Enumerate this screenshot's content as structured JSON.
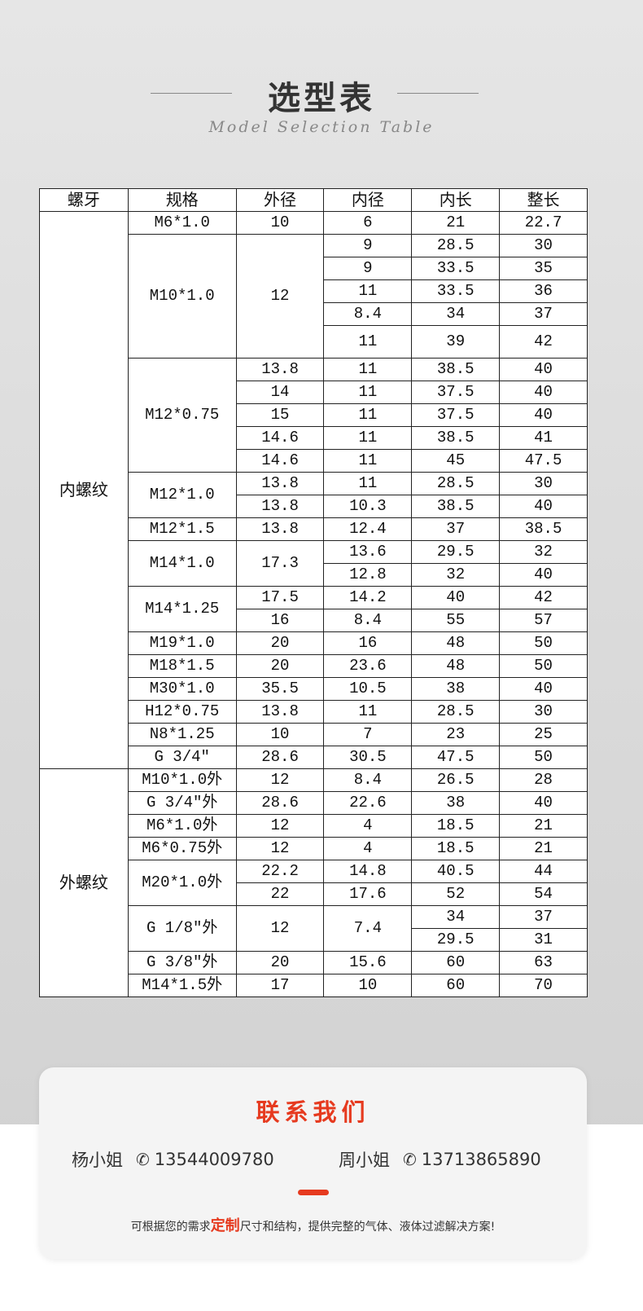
{
  "header": {
    "title": "选型表",
    "subtitle": "Model Selection Table"
  },
  "table": {
    "columns": [
      "螺牙",
      "规格",
      "外径",
      "内径",
      "内长",
      "整长"
    ],
    "rows": [
      [
        {
          "t": "内螺纹",
          "rs": 24
        },
        {
          "t": "M6*1.0"
        },
        {
          "t": "10"
        },
        {
          "t": "6"
        },
        {
          "t": "21"
        },
        {
          "t": "22.7"
        }
      ],
      [
        {
          "t": "M10*1.0",
          "rs": 5
        },
        {
          "t": "12",
          "rs": 5
        },
        {
          "t": "9"
        },
        {
          "t": "28.5"
        },
        {
          "t": "30"
        }
      ],
      [
        {
          "t": "9"
        },
        {
          "t": "33.5"
        },
        {
          "t": "35"
        }
      ],
      [
        {
          "t": "11"
        },
        {
          "t": "33.5"
        },
        {
          "t": "36"
        }
      ],
      [
        {
          "t": "8.4"
        },
        {
          "t": "34"
        },
        {
          "t": "37"
        }
      ],
      [
        {
          "t": "11"
        },
        {
          "t": "39"
        },
        {
          "t": "42"
        }
      ],
      [
        {
          "t": "M12*0.75",
          "rs": 5
        },
        {
          "t": "13.8"
        },
        {
          "t": "11"
        },
        {
          "t": "38.5"
        },
        {
          "t": "40"
        }
      ],
      [
        {
          "t": "14"
        },
        {
          "t": "11"
        },
        {
          "t": "37.5"
        },
        {
          "t": "40"
        }
      ],
      [
        {
          "t": "15"
        },
        {
          "t": "11"
        },
        {
          "t": "37.5"
        },
        {
          "t": "40"
        }
      ],
      [
        {
          "t": "14.6"
        },
        {
          "t": "11"
        },
        {
          "t": "38.5"
        },
        {
          "t": "41"
        }
      ],
      [
        {
          "t": "14.6"
        },
        {
          "t": "11"
        },
        {
          "t": "45"
        },
        {
          "t": "47.5"
        }
      ],
      [
        {
          "t": "M12*1.0",
          "rs": 2
        },
        {
          "t": "13.8"
        },
        {
          "t": "11"
        },
        {
          "t": "28.5"
        },
        {
          "t": "30"
        }
      ],
      [
        {
          "t": "13.8"
        },
        {
          "t": "10.3"
        },
        {
          "t": "38.5"
        },
        {
          "t": "40"
        }
      ],
      [
        {
          "t": "M12*1.5"
        },
        {
          "t": "13.8"
        },
        {
          "t": "12.4"
        },
        {
          "t": "37"
        },
        {
          "t": "38.5"
        }
      ],
      [
        {
          "t": "M14*1.0",
          "rs": 2
        },
        {
          "t": "17.3",
          "rs": 2
        },
        {
          "t": "13.6"
        },
        {
          "t": "29.5"
        },
        {
          "t": "32"
        }
      ],
      [
        {
          "t": "12.8"
        },
        {
          "t": "32"
        },
        {
          "t": "40"
        }
      ],
      [
        {
          "t": "M14*1.25",
          "rs": 2
        },
        {
          "t": "17.5"
        },
        {
          "t": "14.2"
        },
        {
          "t": "40"
        },
        {
          "t": "42"
        }
      ],
      [
        {
          "t": "16"
        },
        {
          "t": "8.4"
        },
        {
          "t": "55"
        },
        {
          "t": "57"
        }
      ],
      [
        {
          "t": "M19*1.0"
        },
        {
          "t": "20"
        },
        {
          "t": "16"
        },
        {
          "t": "48"
        },
        {
          "t": "50"
        }
      ],
      [
        {
          "t": "M18*1.5"
        },
        {
          "t": "20"
        },
        {
          "t": "23.6"
        },
        {
          "t": "48"
        },
        {
          "t": "50"
        }
      ],
      [
        {
          "t": "M30*1.0"
        },
        {
          "t": "35.5"
        },
        {
          "t": "10.5"
        },
        {
          "t": "38"
        },
        {
          "t": "40"
        }
      ],
      [
        {
          "t": "H12*0.75"
        },
        {
          "t": "13.8"
        },
        {
          "t": "11"
        },
        {
          "t": "28.5"
        },
        {
          "t": "30"
        }
      ],
      [
        {
          "t": "N8*1.25"
        },
        {
          "t": "10"
        },
        {
          "t": "7"
        },
        {
          "t": "23"
        },
        {
          "t": "25"
        }
      ],
      [
        {
          "t": "G 3/4″"
        },
        {
          "t": "28.6"
        },
        {
          "t": "30.5"
        },
        {
          "t": "47.5"
        },
        {
          "t": "50"
        }
      ],
      [
        {
          "t": "外螺纹",
          "rs": 10
        },
        {
          "t": "M10*1.0外"
        },
        {
          "t": "12"
        },
        {
          "t": "8.4"
        },
        {
          "t": "26.5"
        },
        {
          "t": "28"
        }
      ],
      [
        {
          "t": "G 3/4″外"
        },
        {
          "t": "28.6"
        },
        {
          "t": "22.6"
        },
        {
          "t": "38"
        },
        {
          "t": "40"
        }
      ],
      [
        {
          "t": "M6*1.0外"
        },
        {
          "t": "12"
        },
        {
          "t": "4"
        },
        {
          "t": "18.5"
        },
        {
          "t": "21"
        }
      ],
      [
        {
          "t": "M6*0.75外"
        },
        {
          "t": "12"
        },
        {
          "t": "4"
        },
        {
          "t": "18.5"
        },
        {
          "t": "21"
        }
      ],
      [
        {
          "t": "M20*1.0外",
          "rs": 2
        },
        {
          "t": "22.2"
        },
        {
          "t": "14.8"
        },
        {
          "t": "40.5"
        },
        {
          "t": "44"
        }
      ],
      [
        {
          "t": "22"
        },
        {
          "t": "17.6"
        },
        {
          "t": "52"
        },
        {
          "t": "54"
        }
      ],
      [
        {
          "t": "G 1/8″外",
          "rs": 2
        },
        {
          "t": "12",
          "rs": 2
        },
        {
          "t": "7.4",
          "rs": 2
        },
        {
          "t": "34"
        },
        {
          "t": "37"
        }
      ],
      [
        {
          "t": "29.5"
        },
        {
          "t": "31"
        }
      ],
      [
        {
          "t": "G 3/8″外"
        },
        {
          "t": "20"
        },
        {
          "t": "15.6"
        },
        {
          "t": "60"
        },
        {
          "t": "63"
        }
      ],
      [
        {
          "t": "M14*1.5外"
        },
        {
          "t": "17"
        },
        {
          "t": "10"
        },
        {
          "t": "60"
        },
        {
          "t": "70"
        }
      ]
    ]
  },
  "contact": {
    "title": "联系我们",
    "people": [
      {
        "name": "杨小姐",
        "icon": "phone-icon",
        "phone": "13544009780"
      },
      {
        "name": "周小姐",
        "icon": "phone-icon",
        "phone": "13713865890"
      }
    ],
    "note_before": "可根据您的需求",
    "note_highlight": "定制",
    "note_after": "尺寸和结构，提供完整的气体、液体过滤解决方案!",
    "accent": "#e63a1f"
  }
}
